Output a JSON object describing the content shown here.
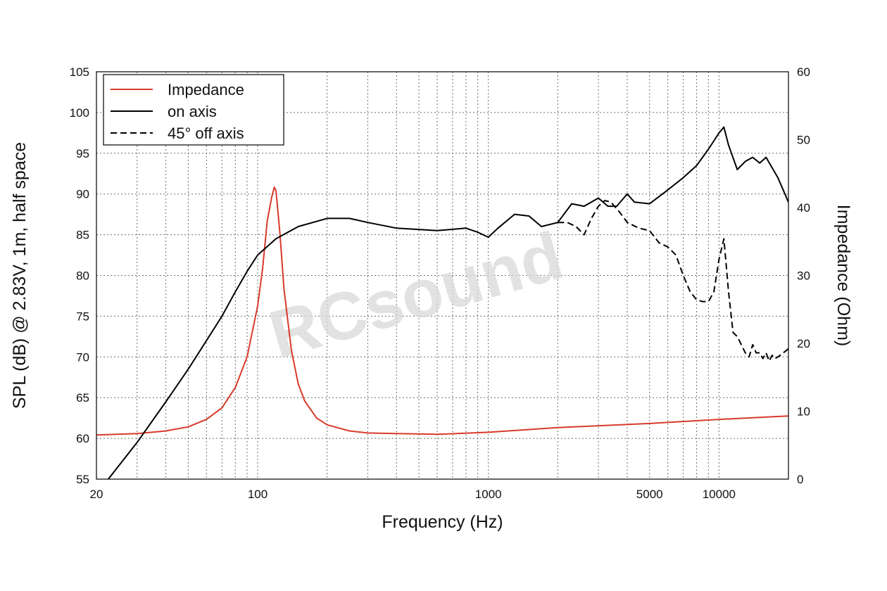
{
  "chart_data": {
    "type": "line",
    "xlabel": "Frequency (Hz)",
    "ylabel": "SPL (dB) @ 2.83V, 1m, half space",
    "y2label": "Impedance (Ohm)",
    "x_scale": "log",
    "xlim": [
      20,
      20000
    ],
    "ylim": [
      55,
      105
    ],
    "y2lim": [
      0,
      60
    ],
    "grid": true,
    "legend_position": "top-left",
    "x_tick_labels": [
      "20",
      "100",
      "1000",
      "5000",
      "10000"
    ],
    "x_tick_values": [
      20,
      100,
      1000,
      5000,
      10000
    ],
    "y_ticks": [
      55,
      60,
      65,
      70,
      75,
      80,
      85,
      90,
      95,
      100,
      105
    ],
    "y2_ticks": [
      0,
      10,
      20,
      30,
      40,
      50,
      60
    ],
    "watermark": "RCsound",
    "colors": {
      "impedance": "#d93a2b",
      "on_axis": "#000000",
      "off_axis": "#000000"
    },
    "series": [
      {
        "name": "Impedance",
        "axis": "right",
        "style": "solid",
        "x": [
          20,
          30,
          40,
          50,
          60,
          70,
          80,
          90,
          100,
          105,
          110,
          115,
          118,
          120,
          122,
          125,
          130,
          140,
          150,
          160,
          180,
          200,
          250,
          300,
          400,
          600,
          1000,
          2000,
          5000,
          10000,
          20000
        ],
        "y": [
          6.5,
          6.7,
          7.1,
          7.7,
          8.8,
          10.5,
          13.5,
          18.0,
          25.5,
          31.0,
          38.0,
          41.5,
          43.0,
          42.5,
          40.0,
          36.0,
          28.0,
          19.0,
          14.0,
          11.5,
          9.0,
          8.0,
          7.1,
          6.8,
          6.7,
          6.6,
          6.9,
          7.6,
          8.2,
          8.8,
          9.3
        ]
      },
      {
        "name": "on axis",
        "axis": "left",
        "style": "solid",
        "x": [
          22.5,
          30,
          40,
          50,
          60,
          70,
          80,
          90,
          100,
          120,
          150,
          200,
          250,
          300,
          400,
          600,
          800,
          900,
          1000,
          1100,
          1300,
          1500,
          1700,
          2000,
          2300,
          2600,
          3000,
          3300,
          3600,
          4000,
          4300,
          5000,
          6000,
          7000,
          8000,
          9000,
          10000,
          10500,
          11000,
          12000,
          13000,
          14000,
          15000,
          16000,
          18000,
          20000
        ],
        "y": [
          55,
          59.5,
          64.5,
          68.5,
          72.0,
          75.0,
          78.0,
          80.5,
          82.5,
          84.5,
          86.0,
          87.0,
          87.0,
          86.5,
          85.8,
          85.5,
          85.8,
          85.3,
          84.7,
          85.8,
          87.5,
          87.3,
          86.0,
          86.5,
          88.8,
          88.5,
          89.5,
          88.5,
          88.5,
          90.0,
          89.0,
          88.8,
          90.5,
          92.0,
          93.5,
          95.5,
          97.5,
          98.2,
          96.0,
          93.0,
          94.0,
          94.5,
          93.8,
          94.5,
          92.0,
          89.0
        ]
      },
      {
        "name": "45° off axis",
        "axis": "left",
        "style": "dashed",
        "x": [
          2000,
          2200,
          2400,
          2600,
          2800,
          3000,
          3200,
          3400,
          3700,
          4000,
          4500,
          5000,
          5500,
          6000,
          6500,
          7000,
          7500,
          8000,
          8500,
          9000,
          9500,
          10000,
          10500,
          11000,
          11500,
          12000,
          12500,
          13000,
          13500,
          14000,
          14500,
          15000,
          15500,
          16000,
          16500,
          17000,
          17500,
          18000,
          19000,
          20000
        ],
        "y": [
          86.5,
          86.5,
          86.0,
          85.0,
          87.0,
          88.5,
          89.2,
          89.0,
          87.8,
          86.5,
          85.8,
          85.5,
          84.0,
          83.5,
          82.5,
          80.0,
          78.0,
          77.0,
          76.8,
          76.8,
          78.0,
          82.0,
          84.5,
          78.0,
          73.0,
          72.5,
          71.5,
          70.5,
          70.0,
          71.5,
          70.5,
          70.5,
          69.8,
          70.5,
          69.5,
          70.2,
          69.8,
          70.0,
          70.5,
          71.0
        ]
      }
    ]
  }
}
